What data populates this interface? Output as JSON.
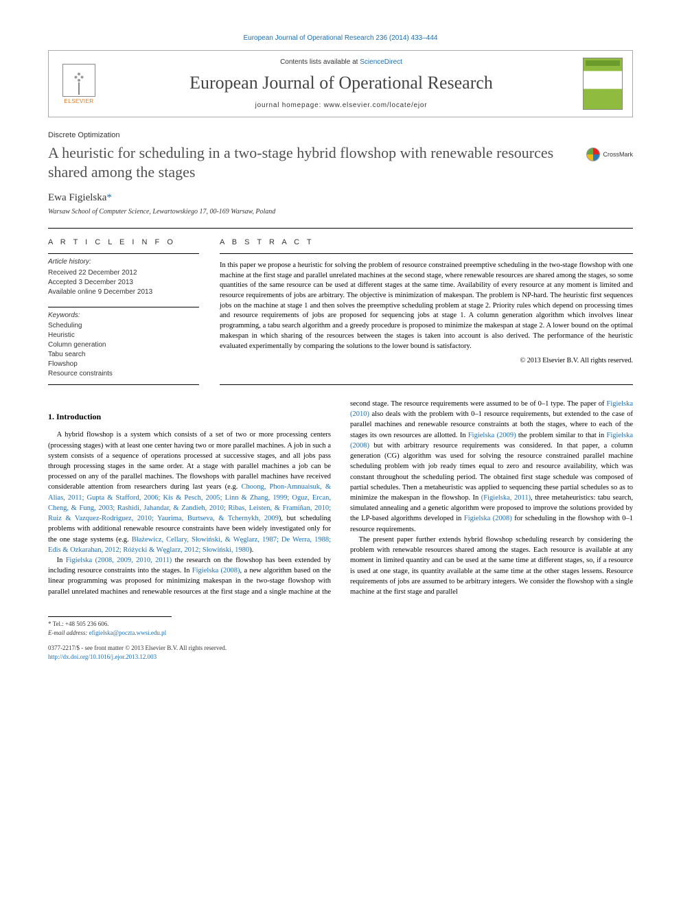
{
  "colors": {
    "link": "#1a6fb5",
    "text": "#000000",
    "muted": "#505050",
    "orange": "#e67817",
    "cover_green": "#8fbc3f"
  },
  "header": {
    "citation": "European Journal of Operational Research 236 (2014) 433–444",
    "contents_prefix": "Contents lists available at ",
    "contents_link": "ScienceDirect",
    "journal": "European Journal of Operational Research",
    "homepage_prefix": "journal homepage: ",
    "homepage_url": "www.elsevier.com/locate/ejor",
    "publisher": "ELSEVIER"
  },
  "article": {
    "section": "Discrete Optimization",
    "title": "A heuristic for scheduling in a two-stage hybrid flowshop with renewable resources shared among the stages",
    "crossmark": "CrossMark",
    "author": "Ewa Figielska",
    "author_mark": "*",
    "affiliation": "Warsaw School of Computer Science, Lewartowskiego 17, 00-169 Warsaw, Poland"
  },
  "info": {
    "heading": "A R T I C L E   I N F O",
    "history_label": "Article history:",
    "received": "Received 22 December 2012",
    "accepted": "Accepted 3 December 2013",
    "online": "Available online 9 December 2013",
    "keywords_label": "Keywords:",
    "keywords": [
      "Scheduling",
      "Heuristic",
      "Column generation",
      "Tabu search",
      "Flowshop",
      "Resource constraints"
    ]
  },
  "abstract": {
    "heading": "A B S T R A C T",
    "text": "In this paper we propose a heuristic for solving the problem of resource constrained preemptive scheduling in the two-stage flowshop with one machine at the first stage and parallel unrelated machines at the second stage, where renewable resources are shared among the stages, so some quantities of the same resource can be used at different stages at the same time. Availability of every resource at any moment is limited and resource requirements of jobs are arbitrary. The objective is minimization of makespan. The problem is NP-hard. The heuristic first sequences jobs on the machine at stage 1 and then solves the preemptive scheduling problem at stage 2. Priority rules which depend on processing times and resource requirements of jobs are proposed for sequencing jobs at stage 1. A column generation algorithm which involves linear programming, a tabu search algorithm and a greedy procedure is proposed to minimize the makespan at stage 2. A lower bound on the optimal makespan in which sharing of the resources between the stages is taken into account is also derived. The performance of the heuristic evaluated experimentally by comparing the solutions to the lower bound is satisfactory.",
    "copyright": "© 2013 Elsevier B.V. All rights reserved."
  },
  "body": {
    "heading1": "1. Introduction",
    "p1a": "A hybrid flowshop is a system which consists of a set of two or more processing centers (processing stages) with at least one center having two or more parallel machines. A job in such a system consists of a sequence of operations processed at successive stages, and all jobs pass through processing stages in the same order. At a stage with parallel machines a job can be processed on any of the parallel machines. The flowshops with parallel machines have received considerable attention from researchers during last years (e.g. ",
    "refs1": "Choong, Phon-Amnuaisuk, & Alias, 2011; Gupta & Stafford, 2006; Kis & Pesch, 2005; Linn & Zhang, 1999; Oguz, Ercan, Cheng, & Fung, 2003; Rashidi, Jahandar, & Zandieh, 2010; Ribas, Leisten, & Framiñan, 2010; Ruiz & Vazquez-Rodriguez, 2010; Yaurima, Burtseva, & Tchernykh, 2009",
    "p1b": "), but scheduling problems with additional renewable resource constraints have been widely investigated only for the one stage systems (e.g. ",
    "refs2": "Błażewicz, Cellary, Słowiński, & Węglarz, 1987; De Werra, 1988; Edis & Ozkarahan, 2012; Różycki & Węglarz, 2012; Słowiński, 1980",
    "p1c": ").",
    "p2a": "In ",
    "refs3": "Figielska (2008, 2009, 2010, 2011)",
    "p2b": " the research on the flowshop has been extended by including resource constraints into the stages. In ",
    "refs4": "Figielska (2008)",
    "p2c": ", a new algorithm based on the linear programming was proposed for minimizing makespan in the two-stage flowshop with parallel unrelated machines and renewable ",
    "p2d": "resources at the first stage and a single machine at the second stage. The resource requirements were assumed to be of 0–1 type. The paper of ",
    "refs5": "Figielska (2010)",
    "p2e": " also deals with the problem with 0–1 resource requirements, but extended to the case of parallel machines and renewable resource constraints at both the stages, where to each of the stages its own resources are allotted. In ",
    "refs6": "Figielska (2009)",
    "p2f": " the problem similar to that in ",
    "refs7": "Figielska (2008)",
    "p2g": " but with arbitrary resource requirements was considered. In that paper, a column generation (CG) algorithm was used for solving the resource constrained parallel machine scheduling problem with job ready times equal to zero and resource availability, which was constant throughout the scheduling period. The obtained first stage schedule was composed of partial schedules. Then a metaheuristic was applied to sequencing these partial schedules so as to minimize the makespan in the flowshop. In ",
    "refs8": "(Figielska, 2011)",
    "p2h": ", three metaheuristics: tabu search, simulated annealing and a genetic algorithm were proposed to improve the solutions provided by the LP-based algorithms developed in ",
    "refs9": "Figielska (2008)",
    "p2i": " for scheduling in the flowshop with 0–1 resource requirements.",
    "p3": "The present paper further extends hybrid flowshop scheduling research by considering the problem with renewable resources shared among the stages. Each resource is available at any moment in limited quantity and can be used at the same time at different stages, so, if a resource is used at one stage, its quantity available at the same time at the other stages lessens. Resource requirements of jobs are assumed to be arbitrary integers. We consider the flowshop with a single machine at the first stage and parallel"
  },
  "footer": {
    "corr_label": "* Tel.: +48 505 236 606.",
    "email_label": "E-mail address: ",
    "email": "efigielska@poczta.wwsi.edu.pl",
    "issn": "0377-2217/$ - see front matter © 2013 Elsevier B.V. All rights reserved.",
    "doi_label": "http://dx.doi.org/",
    "doi": "10.1016/j.ejor.2013.12.003"
  }
}
